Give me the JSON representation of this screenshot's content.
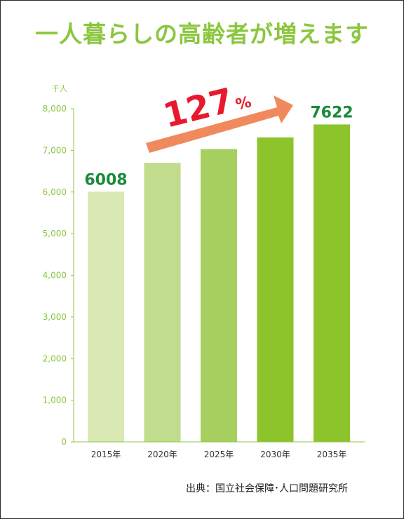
{
  "header": {
    "title": "一人暮らしの高齢者が増えます",
    "unit": "千人"
  },
  "source": "出典：国立社会保障･人口問題研究所",
  "chart_data": {
    "type": "bar",
    "categories": [
      "2015年",
      "2020年",
      "2025年",
      "2030年",
      "2035年"
    ],
    "values": [
      6008,
      6700,
      7030,
      7310,
      7622
    ],
    "bar_colors": [
      "#d9e8b4",
      "#c1dc8c",
      "#a6cf5f",
      "#8dc42c",
      "#8dc42c"
    ],
    "data_labels": [
      {
        "index": 0,
        "text": "6008"
      },
      {
        "index": 4,
        "text": "7622"
      }
    ],
    "ylim": [
      0,
      8000
    ],
    "yticks": [
      0,
      1000,
      2000,
      3000,
      4000,
      5000,
      6000,
      7000,
      8000
    ],
    "ytick_labels": [
      "0",
      "1,000",
      "2,000",
      "3,000",
      "4,000",
      "5,000",
      "6,000",
      "7,000",
      "8,000"
    ],
    "annotation": {
      "value": "127",
      "suffix": "%"
    },
    "grid": false,
    "colors": {
      "axis": "#8cc63f",
      "label_green": "#1a8a3a",
      "arrow": "#f08a5d",
      "annotation_red": "#e8192c"
    }
  }
}
